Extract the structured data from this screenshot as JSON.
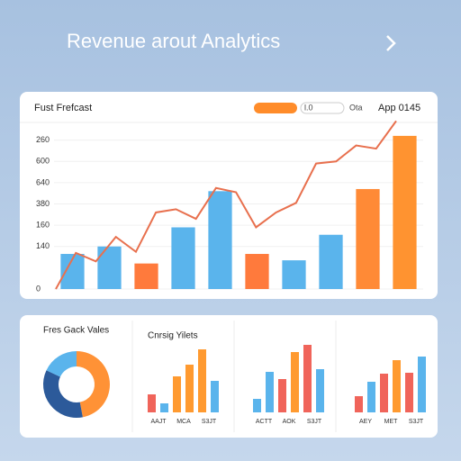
{
  "header": {
    "title": "Revenue arout Analytics"
  },
  "main_chart": {
    "type": "bar",
    "title": "Fust Frefcast",
    "legend": [
      "l.0",
      "Ota"
    ],
    "badge": "App 0145",
    "ylim": [
      0,
      8
    ],
    "yticks": [
      0,
      {
        "value": 2,
        "label": "140"
      },
      {
        "value": 3,
        "label": "160"
      },
      {
        "value": 4,
        "label": "380"
      },
      {
        "value": 5,
        "label": "640"
      },
      {
        "value": 6,
        "label": "600"
      },
      {
        "value": 7,
        "label": "260"
      }
    ],
    "bars": {
      "values": [
        1.65,
        2.0,
        1.2,
        2.9,
        4.6,
        1.65,
        1.35,
        2.55,
        4.7,
        7.2
      ],
      "colors": [
        "#5ab4ec",
        "#5ab4ec",
        "#ff7a3c",
        "#5ab4ec",
        "#5ab4ec",
        "#ff7a3c",
        "#5ab4ec",
        "#5ab4ec",
        "#ff8a36",
        "#ff9330"
      ]
    },
    "line": {
      "color": "#e8704e",
      "values": [
        0,
        1.7,
        1.3,
        2.45,
        1.75,
        3.6,
        3.75,
        3.3,
        4.75,
        4.55,
        2.9,
        3.6,
        4.05,
        5.9,
        6.0,
        6.75,
        6.6,
        7.9
      ]
    }
  },
  "donut": {
    "type": "pie",
    "title": "Fres Gack Vales",
    "values": [
      47,
      35,
      18
    ],
    "colors": [
      "#ff9236",
      "#2c5a9a",
      "#5ab4ec"
    ]
  },
  "mini_charts": [
    {
      "type": "bar",
      "title": "Cnrsig Yilets",
      "labels": [
        "AAJT",
        "MCA",
        "S3JT"
      ],
      "values": [
        20,
        10,
        40,
        53,
        70,
        35
      ],
      "colors": [
        "#f0645a",
        "#5ab4ec",
        "#ff9a30",
        "#ff9a30",
        "#ff9a30",
        "#5ab4ec"
      ]
    },
    {
      "type": "bar",
      "labels": [
        "ACTT",
        "AOK",
        "S3JT"
      ],
      "values": [
        15,
        45,
        37,
        67,
        75,
        48
      ],
      "colors": [
        "#5ab4ec",
        "#5ab4ec",
        "#f0645a",
        "#ff9a30",
        "#f0645a",
        "#5ab4ec"
      ]
    },
    {
      "type": "bar",
      "labels": [
        "AEY",
        "MET",
        "S3JT"
      ],
      "values": [
        18,
        34,
        43,
        58,
        44,
        62
      ],
      "colors": [
        "#f0645a",
        "#5ab4ec",
        "#f0645a",
        "#ff9a30",
        "#f0645a",
        "#5ab4ec"
      ]
    }
  ]
}
